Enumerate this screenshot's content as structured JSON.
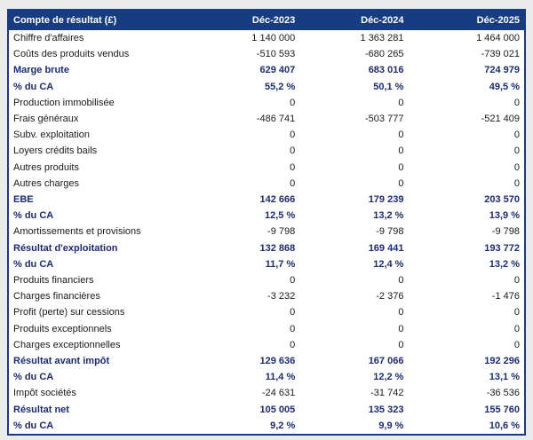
{
  "colors": {
    "header_bg": "#183c82",
    "header_text": "#ffffff",
    "table_border": "#183c82",
    "bold_row_text": "#1c2a75",
    "body_text": "#1a1a1a",
    "page_bg": "#ebebeb",
    "row_bg": "#ffffff"
  },
  "table": {
    "header": {
      "label": "Compte de résultat (£)",
      "columns": [
        "Déc-2023",
        "Déc-2024",
        "Déc-2025"
      ]
    },
    "rows": [
      {
        "label": "Chiffre d'affaires",
        "values": [
          "1 140 000",
          "1 363 281",
          "1 464 000"
        ],
        "bold": false
      },
      {
        "label": "Coûts des produits vendus",
        "values": [
          "-510 593",
          "-680 265",
          "-739 021"
        ],
        "bold": false
      },
      {
        "label": "Marge brute",
        "values": [
          "629 407",
          "683 016",
          "724 979"
        ],
        "bold": true
      },
      {
        "label": "% du CA",
        "values": [
          "55,2 %",
          "50,1 %",
          "49,5 %"
        ],
        "bold": true
      },
      {
        "label": "Production immobilisée",
        "values": [
          "0",
          "0",
          "0"
        ],
        "bold": false
      },
      {
        "label": "Frais généraux",
        "values": [
          "-486 741",
          "-503 777",
          "-521 409"
        ],
        "bold": false
      },
      {
        "label": "Subv. exploitation",
        "values": [
          "0",
          "0",
          "0"
        ],
        "bold": false
      },
      {
        "label": "Loyers crédits bails",
        "values": [
          "0",
          "0",
          "0"
        ],
        "bold": false
      },
      {
        "label": "Autres produits",
        "values": [
          "0",
          "0",
          "0"
        ],
        "bold": false
      },
      {
        "label": "Autres charges",
        "values": [
          "0",
          "0",
          "0"
        ],
        "bold": false
      },
      {
        "label": "EBE",
        "values": [
          "142 666",
          "179 239",
          "203 570"
        ],
        "bold": true
      },
      {
        "label": "% du CA",
        "values": [
          "12,5 %",
          "13,2 %",
          "13,9 %"
        ],
        "bold": true
      },
      {
        "label": "Amortissements et provisions",
        "values": [
          "-9 798",
          "-9 798",
          "-9 798"
        ],
        "bold": false
      },
      {
        "label": "Résultat d'exploitation",
        "values": [
          "132 868",
          "169 441",
          "193 772"
        ],
        "bold": true
      },
      {
        "label": "% du CA",
        "values": [
          "11,7 %",
          "12,4 %",
          "13,2 %"
        ],
        "bold": true
      },
      {
        "label": "Produits financiers",
        "values": [
          "0",
          "0",
          "0"
        ],
        "bold": false
      },
      {
        "label": "Charges financières",
        "values": [
          "-3 232",
          "-2 376",
          "-1 476"
        ],
        "bold": false
      },
      {
        "label": "Profit (perte) sur cessions",
        "values": [
          "0",
          "0",
          "0"
        ],
        "bold": false
      },
      {
        "label": "Produits exceptionnels",
        "values": [
          "0",
          "0",
          "0"
        ],
        "bold": false
      },
      {
        "label": "Charges exceptionnelles",
        "values": [
          "0",
          "0",
          "0"
        ],
        "bold": false
      },
      {
        "label": "Résultat avant impôt",
        "values": [
          "129 636",
          "167 066",
          "192 296"
        ],
        "bold": true
      },
      {
        "label": "% du CA",
        "values": [
          "11,4 %",
          "12,2 %",
          "13,1 %"
        ],
        "bold": true
      },
      {
        "label": "Impôt sociétés",
        "values": [
          "-24 631",
          "-31 742",
          "-36 536"
        ],
        "bold": false
      },
      {
        "label": "Résultat net",
        "values": [
          "105 005",
          "135 323",
          "155 760"
        ],
        "bold": true
      },
      {
        "label": "% du CA",
        "values": [
          "9,2 %",
          "9,9 %",
          "10,6 %"
        ],
        "bold": true
      }
    ]
  }
}
